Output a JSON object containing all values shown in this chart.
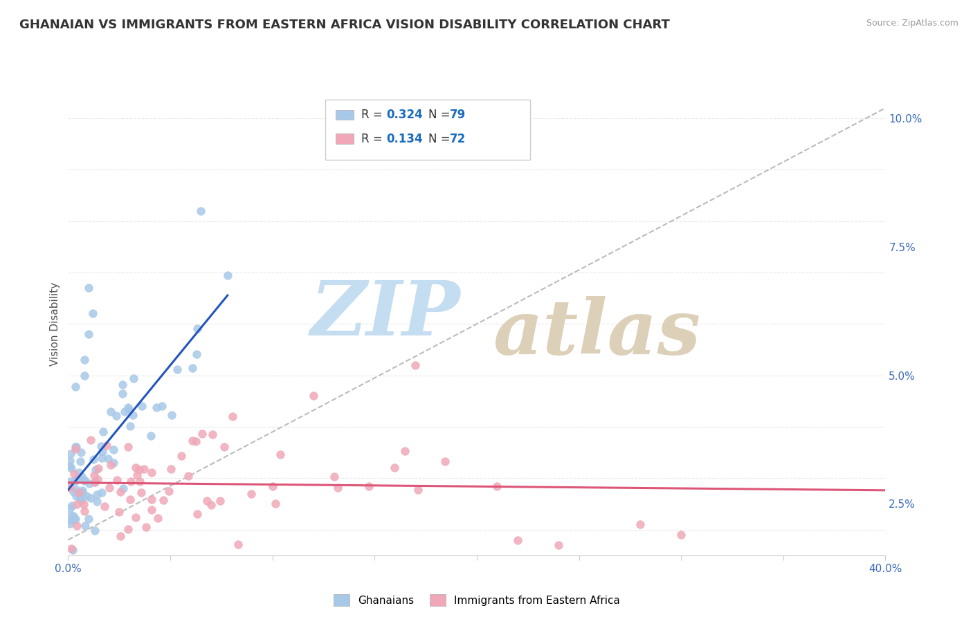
{
  "title": "GHANAIAN VS IMMIGRANTS FROM EASTERN AFRICA VISION DISABILITY CORRELATION CHART",
  "source_text": "Source: ZipAtlas.com",
  "ylabel": "Vision Disability",
  "xlim": [
    0.0,
    0.4
  ],
  "ylim": [
    0.015,
    0.105
  ],
  "xticks": [
    0.0,
    0.05,
    0.1,
    0.15,
    0.2,
    0.25,
    0.3,
    0.35,
    0.4
  ],
  "ytick_labels_right": [
    "2.5%",
    "",
    "5.0%",
    "",
    "7.5%",
    "",
    "10.0%"
  ],
  "yticks_right": [
    0.025,
    0.0375,
    0.05,
    0.0625,
    0.075,
    0.0875,
    0.1
  ],
  "ghanaian_color": "#a8c8e8",
  "immigrant_color": "#f0a8b8",
  "ghanaian_R": 0.324,
  "ghanaian_N": 79,
  "immigrant_R": 0.134,
  "immigrant_N": 72,
  "legend_R_color": "#1a6bbf",
  "watermark_zip_color": "#c8dff0",
  "watermark_atlas_color": "#d8c8b8",
  "background_color": "#ffffff",
  "grid_color": "#e8e8e8",
  "title_fontsize": 13,
  "axis_label_fontsize": 11,
  "tick_fontsize": 11,
  "ref_line_color": "#bbbbbb",
  "blue_line_color": "#2255bb",
  "pink_line_color": "#dd5577"
}
